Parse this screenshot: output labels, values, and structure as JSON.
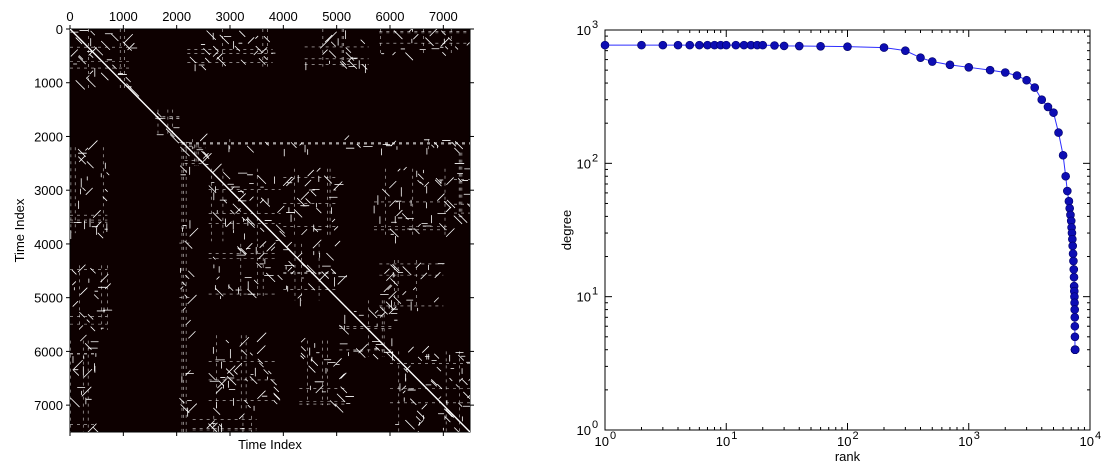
{
  "chart_data": [
    {
      "type": "heatmap",
      "title": "",
      "xlabel": "Time Index",
      "ylabel": "Time Index",
      "xlim": [
        0,
        7500
      ],
      "ylim": [
        7500,
        0
      ],
      "xticks": [
        0,
        1000,
        2000,
        3000,
        4000,
        5000,
        6000,
        7000
      ],
      "xtick_labels": [
        "0",
        "1000",
        "2000",
        "3000",
        "4000",
        "5000",
        "6000",
        "7000"
      ],
      "yticks": [
        0,
        1000,
        2000,
        3000,
        4000,
        5000,
        6000,
        7000
      ],
      "ytick_labels": [
        "0",
        "1000",
        "2000",
        "3000",
        "4000",
        "5000",
        "6000",
        "7000"
      ],
      "x_tick_position": "top",
      "colors": {
        "background": "#0d0000",
        "recurrence": "#ffffff"
      },
      "diagonal": true,
      "blocks": [
        {
          "x0": 0,
          "x1": 1150,
          "y0": 0,
          "y1": 1150
        },
        {
          "x0": 1600,
          "x1": 2050,
          "y0": 1500,
          "y1": 2000
        },
        {
          "x0": 2150,
          "x1": 2550,
          "y0": 2150,
          "y1": 2550
        },
        {
          "x0": 2600,
          "x1": 3950,
          "y0": 2600,
          "y1": 3950
        },
        {
          "x0": 4000,
          "x1": 5050,
          "y0": 4000,
          "y1": 5050
        },
        {
          "x0": 5050,
          "x1": 6100,
          "y0": 5050,
          "y1": 6100
        },
        {
          "x0": 6000,
          "x1": 7500,
          "y0": 6000,
          "y1": 7500
        },
        {
          "x0": 2200,
          "x1": 3800,
          "y0": 0,
          "y1": 700
        },
        {
          "x0": 0,
          "x1": 700,
          "y0": 2200,
          "y1": 3800
        },
        {
          "x0": 4400,
          "x1": 5600,
          "y0": 0,
          "y1": 700
        },
        {
          "x0": 0,
          "x1": 700,
          "y0": 4400,
          "y1": 5600
        },
        {
          "x0": 5800,
          "x1": 7500,
          "y0": 0,
          "y1": 500
        },
        {
          "x0": 0,
          "x1": 500,
          "y0": 5800,
          "y1": 7500
        },
        {
          "x0": 2600,
          "x1": 3900,
          "y0": 5700,
          "y1": 7100
        },
        {
          "x0": 5700,
          "x1": 7100,
          "y0": 2600,
          "y1": 3900
        },
        {
          "x0": 4300,
          "x1": 5200,
          "y0": 5800,
          "y1": 7000
        },
        {
          "x0": 5800,
          "x1": 7000,
          "y0": 4300,
          "y1": 5200
        },
        {
          "x0": 2100,
          "x1": 7500,
          "y0": 2050,
          "y1": 2250
        },
        {
          "x0": 2050,
          "x1": 2250,
          "y0": 2100,
          "y1": 7500
        },
        {
          "x0": 2300,
          "x1": 3500,
          "y0": 7200,
          "y1": 7500
        },
        {
          "x0": 7200,
          "x1": 7500,
          "y0": 2300,
          "y1": 3500
        },
        {
          "x0": 4000,
          "x1": 5000,
          "y0": 2600,
          "y1": 3900
        },
        {
          "x0": 2600,
          "x1": 3900,
          "y0": 4000,
          "y1": 5000
        }
      ]
    },
    {
      "type": "scatter",
      "title": "",
      "xlabel": "rank",
      "ylabel": "degree",
      "xscale": "log",
      "yscale": "log",
      "xlim": [
        1,
        10000
      ],
      "ylim": [
        1,
        1000
      ],
      "xticks": [
        1,
        10,
        100,
        1000,
        10000
      ],
      "xtick_labels": [
        [
          "10",
          "0"
        ],
        [
          "10",
          "1"
        ],
        [
          "10",
          "2"
        ],
        [
          "10",
          "3"
        ],
        [
          "10",
          "4"
        ]
      ],
      "yticks": [
        1,
        10,
        100,
        1000
      ],
      "ytick_labels": [
        [
          "10",
          "0"
        ],
        [
          "10",
          "1"
        ],
        [
          "10",
          "2"
        ],
        [
          "10",
          "3"
        ]
      ],
      "marker_color": "#0d0db3",
      "line_color": "#2e2eff",
      "marker": "circle",
      "x": [
        1,
        2,
        3,
        4,
        5,
        6,
        7,
        8,
        9,
        10,
        12,
        14,
        16,
        18,
        20,
        25,
        30,
        40,
        60,
        100,
        200,
        300,
        400,
        500,
        700,
        1000,
        1500,
        2000,
        2500,
        3000,
        3500,
        4000,
        4500,
        5000,
        5500,
        6000,
        6300,
        6500,
        6700,
        6800,
        6900,
        7000,
        7050,
        7100,
        7150,
        7200,
        7250,
        7300,
        7350,
        7380,
        7400,
        7420,
        7440,
        7460,
        7480,
        7490,
        7500,
        7510,
        7520,
        7530,
        7540,
        7545
      ],
      "y": [
        770,
        770,
        770,
        770,
        770,
        770,
        770,
        770,
        770,
        770,
        770,
        770,
        770,
        770,
        770,
        765,
        760,
        758,
        755,
        750,
        738,
        700,
        620,
        580,
        548,
        525,
        500,
        480,
        455,
        420,
        370,
        300,
        265,
        240,
        170,
        115,
        80,
        62,
        52,
        46,
        41,
        37,
        33,
        30,
        27,
        24,
        21,
        18.5,
        16,
        14,
        12,
        11,
        10,
        9,
        8,
        7,
        6,
        5,
        4,
        4,
        4,
        4
      ]
    }
  ]
}
